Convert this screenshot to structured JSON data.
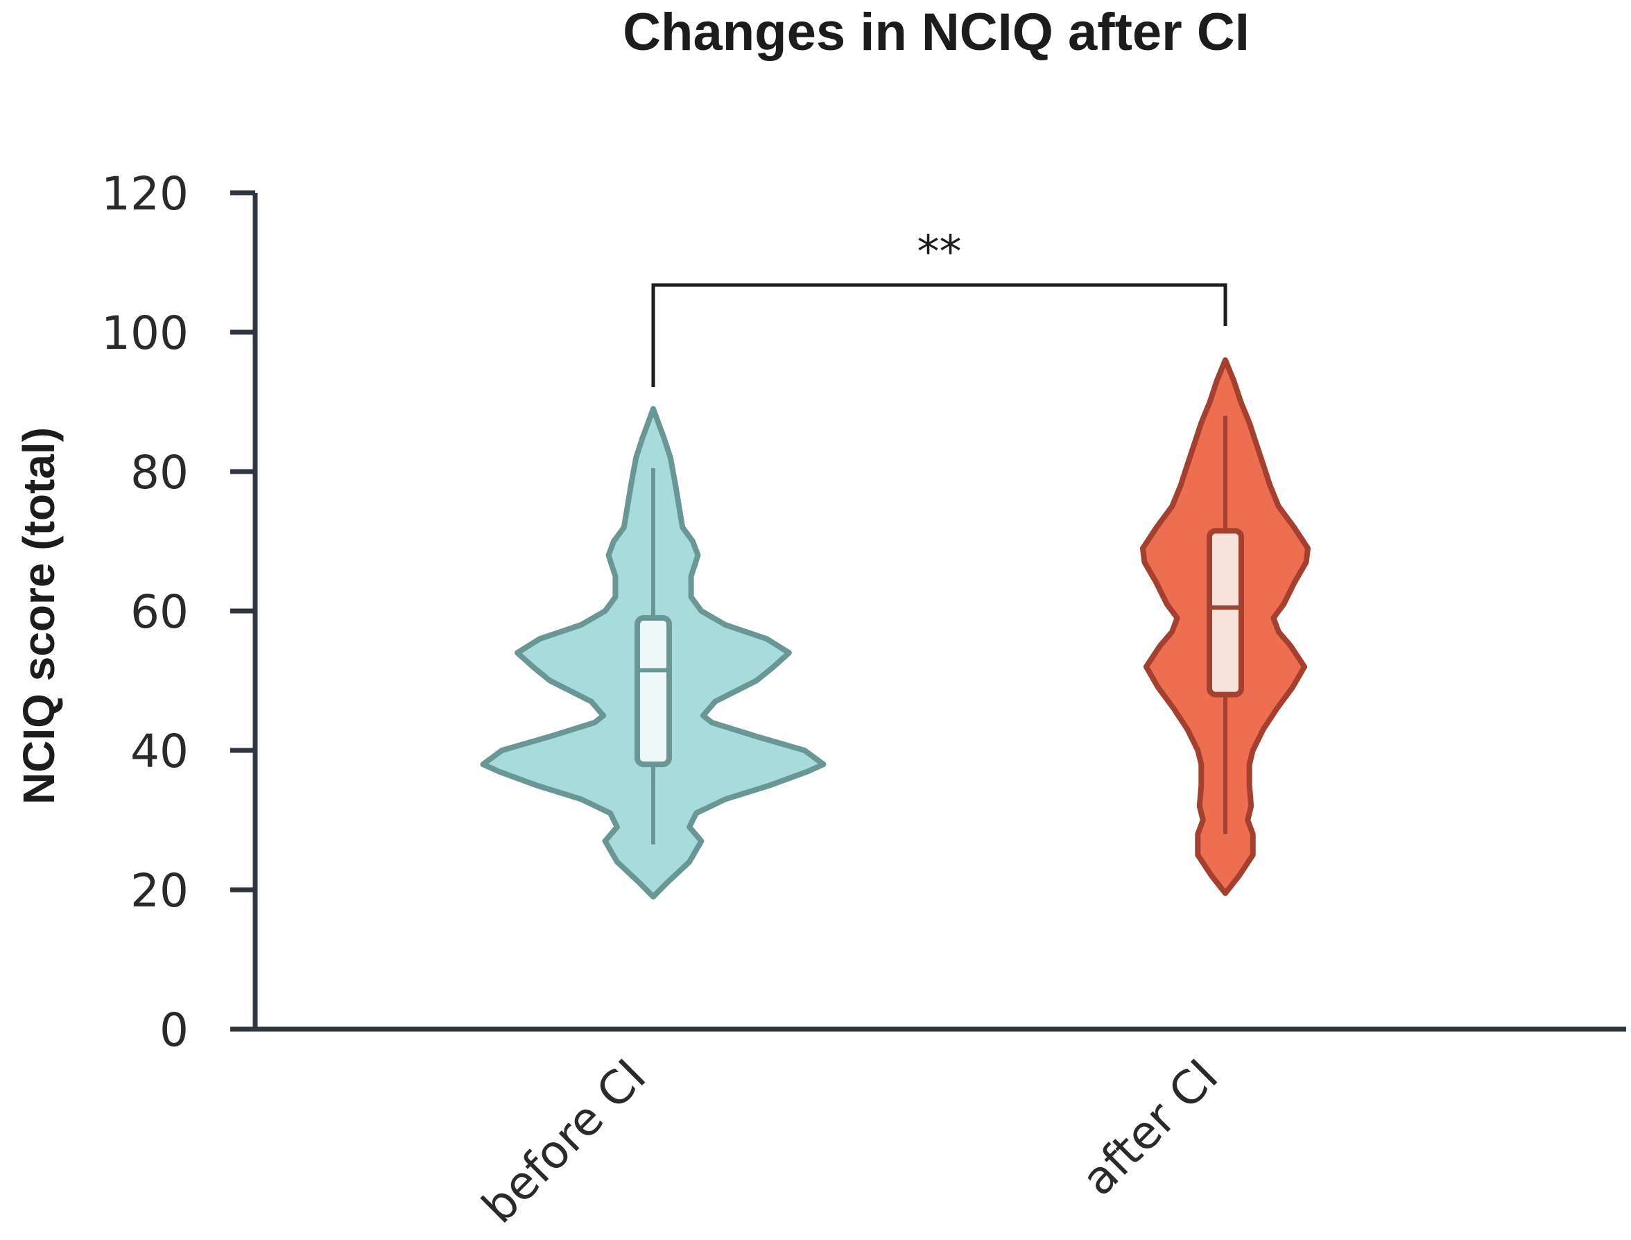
{
  "chart_data": {
    "type": "violin",
    "title": "Changes in NCIQ after CI",
    "xlabel": "",
    "ylabel": "NCIQ score (total)",
    "ylim": [
      0,
      120
    ],
    "yticks": [
      0,
      20,
      40,
      60,
      80,
      100,
      120
    ],
    "ytick_labels": [
      "0",
      "20",
      "40",
      "60",
      "80",
      "100",
      "120"
    ],
    "grid": false,
    "legend": "none",
    "categories": [
      "before CI",
      "after CI"
    ],
    "significance": {
      "between": [
        "before CI",
        "after CI"
      ],
      "label": "**"
    },
    "series": [
      {
        "category": "before CI",
        "fill": "#a8dcdc",
        "stroke": "#6a9696",
        "box_fill": "#eef8f8",
        "whisker_low": 26.5,
        "q1": 38,
        "median": 51.5,
        "q3": 59,
        "whisker_high": 80.5,
        "density_profile": [
          [
            19,
            0.0
          ],
          [
            21,
            0.08
          ],
          [
            24,
            0.21
          ],
          [
            27,
            0.28
          ],
          [
            29,
            0.21
          ],
          [
            31,
            0.25
          ],
          [
            33,
            0.42
          ],
          [
            35,
            0.68
          ],
          [
            37,
            0.9
          ],
          [
            38,
            0.99
          ],
          [
            40,
            0.88
          ],
          [
            42,
            0.6
          ],
          [
            44,
            0.34
          ],
          [
            45,
            0.29
          ],
          [
            47,
            0.36
          ],
          [
            50,
            0.6
          ],
          [
            52,
            0.7
          ],
          [
            54,
            0.79
          ],
          [
            56,
            0.66
          ],
          [
            58,
            0.42
          ],
          [
            60,
            0.28
          ],
          [
            62,
            0.22
          ],
          [
            65,
            0.22
          ],
          [
            68,
            0.26
          ],
          [
            70,
            0.23
          ],
          [
            72,
            0.17
          ],
          [
            75,
            0.15
          ],
          [
            78,
            0.13
          ],
          [
            82,
            0.1
          ],
          [
            85,
            0.06
          ],
          [
            87,
            0.03
          ],
          [
            89,
            0.0
          ]
        ]
      },
      {
        "category": "after CI",
        "fill": "#ee6e52",
        "stroke": "#a44030",
        "box_fill": "#f9e1dc",
        "whisker_low": 28,
        "q1": 48,
        "median": 60.5,
        "q3": 71.5,
        "whisker_high": 88,
        "density_profile": [
          [
            19.5,
            0.0
          ],
          [
            22,
            0.08
          ],
          [
            25,
            0.16
          ],
          [
            28,
            0.16
          ],
          [
            30,
            0.13
          ],
          [
            32,
            0.15
          ],
          [
            35,
            0.14
          ],
          [
            38,
            0.14
          ],
          [
            40,
            0.16
          ],
          [
            43,
            0.22
          ],
          [
            46,
            0.3
          ],
          [
            49,
            0.39
          ],
          [
            52,
            0.46
          ],
          [
            55,
            0.38
          ],
          [
            57,
            0.31
          ],
          [
            59,
            0.28
          ],
          [
            61,
            0.34
          ],
          [
            64,
            0.4
          ],
          [
            67,
            0.47
          ],
          [
            69,
            0.48
          ],
          [
            72,
            0.4
          ],
          [
            75,
            0.31
          ],
          [
            78,
            0.26
          ],
          [
            81,
            0.22
          ],
          [
            84,
            0.18
          ],
          [
            87,
            0.14
          ],
          [
            90,
            0.09
          ],
          [
            93,
            0.05
          ],
          [
            96,
            0.0
          ]
        ]
      }
    ]
  }
}
